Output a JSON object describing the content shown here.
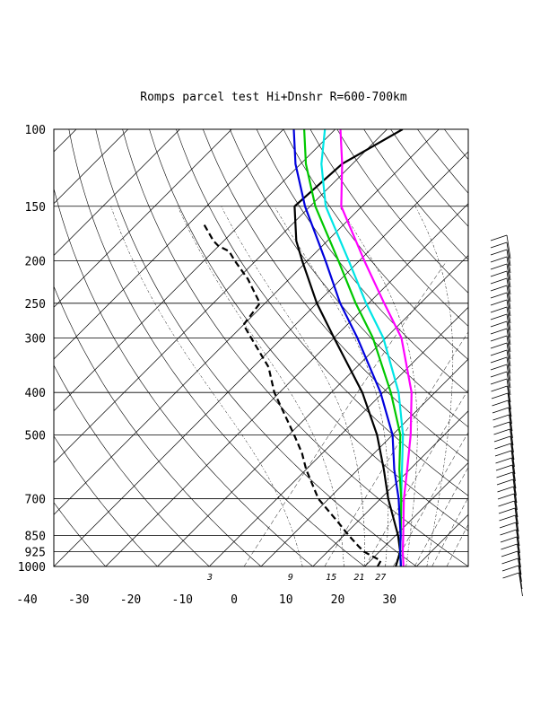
{
  "chart_data": {
    "type": "skew-t",
    "title": "Romps parcel test Hi+Dnshr R=600-700km",
    "pressure_ticks": [
      100,
      150,
      200,
      250,
      300,
      400,
      500,
      700,
      850,
      925,
      1000
    ],
    "pressure_tick_labels": [
      "100",
      "150",
      "200",
      "250",
      "300",
      "400",
      "500",
      "700",
      "850",
      "925",
      "1000"
    ],
    "temperature_ticks": [
      -40,
      -30,
      -20,
      -10,
      0,
      10,
      20,
      30
    ],
    "temperature_tick_labels": [
      "-40",
      "-30",
      "-20",
      "-10",
      "0",
      "10",
      "20",
      "30"
    ],
    "mixing_ratio_labels": [
      "3",
      "9",
      "15",
      "21",
      "27"
    ],
    "ylim": [
      1000,
      100
    ],
    "xlim_at_1000hPa": [
      -40,
      40
    ],
    "series": [
      {
        "color": "#000000",
        "style": "solid",
        "points": [
          [
            1000,
            26
          ],
          [
            925,
            24
          ],
          [
            850,
            20.5
          ],
          [
            700,
            11.5
          ],
          [
            600,
            5
          ],
          [
            500,
            -3
          ],
          [
            400,
            -14
          ],
          [
            300,
            -30
          ],
          [
            250,
            -40
          ],
          [
            200,
            -51
          ],
          [
            180,
            -56
          ],
          [
            150,
            -63
          ],
          [
            120,
            -62
          ],
          [
            100,
            -57
          ]
        ]
      },
      {
        "color": "#000000",
        "style": "dashed",
        "points": [
          [
            1000,
            22.5
          ],
          [
            970,
            22
          ],
          [
            925,
            17
          ],
          [
            900,
            15
          ],
          [
            850,
            11
          ],
          [
            800,
            7
          ],
          [
            700,
            -2
          ],
          [
            600,
            -10
          ],
          [
            550,
            -14
          ],
          [
            500,
            -19
          ],
          [
            400,
            -31
          ],
          [
            350,
            -37
          ],
          [
            300,
            -46
          ],
          [
            280,
            -50
          ],
          [
            250,
            -51
          ],
          [
            220,
            -58
          ],
          [
            200,
            -64
          ],
          [
            190,
            -67
          ],
          [
            185,
            -70
          ],
          [
            180,
            -72
          ],
          [
            165,
            -77
          ]
        ]
      },
      {
        "color": "#ff00ff",
        "style": "solid",
        "points": [
          [
            1000,
            27.5
          ],
          [
            925,
            24.5
          ],
          [
            850,
            21.5
          ],
          [
            700,
            14.5
          ],
          [
            600,
            9.5
          ],
          [
            500,
            3.5
          ],
          [
            400,
            -4.5
          ],
          [
            300,
            -17
          ],
          [
            250,
            -27
          ],
          [
            200,
            -39
          ],
          [
            150,
            -54
          ],
          [
            120,
            -62
          ],
          [
            100,
            -69
          ]
        ]
      },
      {
        "color": "#00e5e5",
        "style": "solid",
        "points": [
          [
            1000,
            27
          ],
          [
            925,
            24
          ],
          [
            850,
            21
          ],
          [
            700,
            14
          ],
          [
            600,
            8.5
          ],
          [
            500,
            2
          ],
          [
            400,
            -7
          ],
          [
            300,
            -20.5
          ],
          [
            250,
            -30.5
          ],
          [
            200,
            -42
          ],
          [
            150,
            -57
          ],
          [
            120,
            -66
          ],
          [
            100,
            -72
          ]
        ]
      },
      {
        "color": "#00c800",
        "style": "solid",
        "points": [
          [
            1000,
            27
          ],
          [
            925,
            24
          ],
          [
            850,
            21
          ],
          [
            700,
            14
          ],
          [
            600,
            8
          ],
          [
            500,
            1.5
          ],
          [
            400,
            -8.5
          ],
          [
            300,
            -22.5
          ],
          [
            250,
            -32.5
          ],
          [
            200,
            -44
          ],
          [
            150,
            -59
          ],
          [
            120,
            -69
          ],
          [
            100,
            -76
          ]
        ]
      },
      {
        "color": "#0000dd",
        "style": "solid",
        "points": [
          [
            1000,
            27
          ],
          [
            925,
            24
          ],
          [
            850,
            21
          ],
          [
            700,
            13.5
          ],
          [
            600,
            7
          ],
          [
            500,
            0
          ],
          [
            400,
            -10.5
          ],
          [
            300,
            -25.5
          ],
          [
            250,
            -35.5
          ],
          [
            200,
            -46.5
          ],
          [
            150,
            -61
          ],
          [
            120,
            -71
          ],
          [
            100,
            -78
          ]
        ]
      }
    ]
  }
}
